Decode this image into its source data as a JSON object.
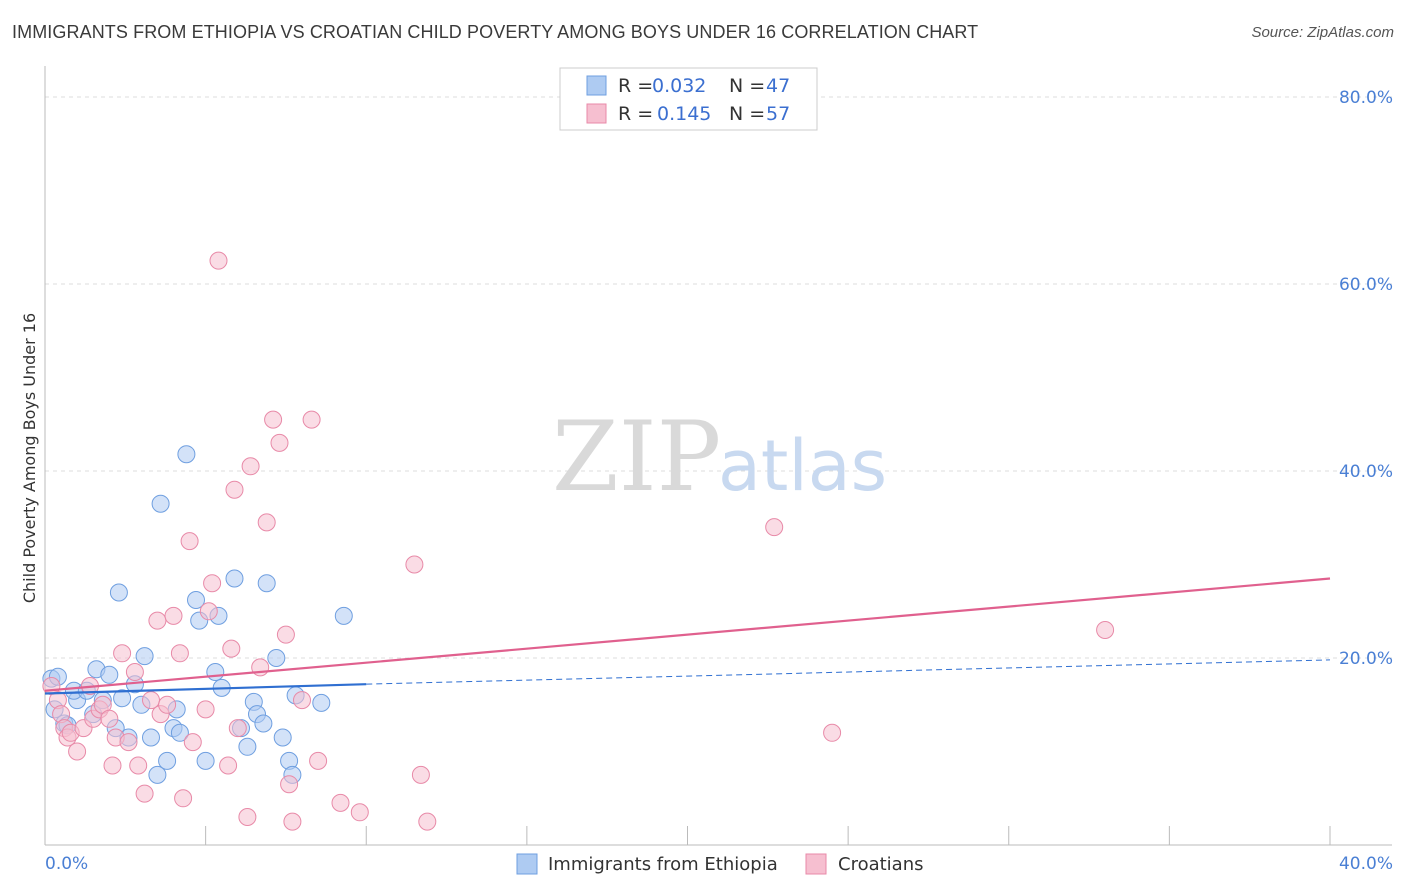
{
  "title": "IMMIGRANTS FROM ETHIOPIA VS CROATIAN CHILD POVERTY AMONG BOYS UNDER 16 CORRELATION CHART",
  "source": "Source: ZipAtlas.com",
  "watermark": {
    "zip": "ZIP",
    "atlas": "atlas"
  },
  "colors": {
    "blue_fill": "#aecbf2",
    "blue_stroke": "#6f9fe0",
    "blue_line": "#2f6fd1",
    "pink_fill": "#f6bfd0",
    "pink_stroke": "#e88aa8",
    "pink_line": "#e0608e",
    "grid": "#dddddd",
    "tick_text": "#4a7fd4"
  },
  "legend": {
    "rows": [
      {
        "r_label": "R =",
        "r_value": "0.032",
        "n_label": "N =",
        "n_value": "47"
      },
      {
        "r_label": "R =",
        "r_value": "0.145",
        "n_label": "N =",
        "n_value": "57"
      }
    ]
  },
  "chart_data": {
    "type": "scatter",
    "title": "IMMIGRANTS FROM ETHIOPIA VS CROATIAN CHILD POVERTY AMONG BOYS UNDER 16 CORRELATION CHART",
    "xlabel": "",
    "ylabel": "Child Poverty Among Boys Under 16",
    "xlim": [
      0,
      40
    ],
    "ylim": [
      0,
      80
    ],
    "x_tick_labels": [
      "0.0%",
      "40.0%"
    ],
    "y_ticks": [
      20,
      40,
      60,
      80
    ],
    "y_tick_labels": [
      "20.0%",
      "40.0%",
      "60.0%",
      "80.0%"
    ],
    "grid": true,
    "series": [
      {
        "name": "Immigrants from Ethiopia",
        "color": "blue",
        "points": [
          [
            0.2,
            17.8
          ],
          [
            0.4,
            18.0
          ],
          [
            0.3,
            14.5
          ],
          [
            0.6,
            13.0
          ],
          [
            0.7,
            12.8
          ],
          [
            1.0,
            15.5
          ],
          [
            0.9,
            16.5
          ],
          [
            1.3,
            16.5
          ],
          [
            1.6,
            18.8
          ],
          [
            1.8,
            15.5
          ],
          [
            2.0,
            18.2
          ],
          [
            2.2,
            12.5
          ],
          [
            2.4,
            15.7
          ],
          [
            2.6,
            11.5
          ],
          [
            2.8,
            17.2
          ],
          [
            3.0,
            15.0
          ],
          [
            3.1,
            20.2
          ],
          [
            3.3,
            11.5
          ],
          [
            3.5,
            7.5
          ],
          [
            3.8,
            9.0
          ],
          [
            4.0,
            12.5
          ],
          [
            4.1,
            14.5
          ],
          [
            4.2,
            12.0
          ],
          [
            4.4,
            41.8
          ],
          [
            3.6,
            36.5
          ],
          [
            2.3,
            27.0
          ],
          [
            4.7,
            26.2
          ],
          [
            4.8,
            24.0
          ],
          [
            5.0,
            9.0
          ],
          [
            5.3,
            18.5
          ],
          [
            5.4,
            24.5
          ],
          [
            5.5,
            16.8
          ],
          [
            5.9,
            28.5
          ],
          [
            6.1,
            12.5
          ],
          [
            6.3,
            10.5
          ],
          [
            6.5,
            15.3
          ],
          [
            6.6,
            14.0
          ],
          [
            6.8,
            13.0
          ],
          [
            6.9,
            28.0
          ],
          [
            7.2,
            20.0
          ],
          [
            7.4,
            11.5
          ],
          [
            7.6,
            9.0
          ],
          [
            7.7,
            7.5
          ],
          [
            7.8,
            16.0
          ],
          [
            8.6,
            15.2
          ],
          [
            9.3,
            24.5
          ],
          [
            1.5,
            14.0
          ]
        ]
      },
      {
        "name": "Croatians",
        "color": "pink",
        "points": [
          [
            0.2,
            17.0
          ],
          [
            0.4,
            15.5
          ],
          [
            0.5,
            14.0
          ],
          [
            0.6,
            12.5
          ],
          [
            0.7,
            11.5
          ],
          [
            0.8,
            12.0
          ],
          [
            1.0,
            10.0
          ],
          [
            1.2,
            12.5
          ],
          [
            1.4,
            17.0
          ],
          [
            1.5,
            13.5
          ],
          [
            1.7,
            14.5
          ],
          [
            1.8,
            15.0
          ],
          [
            2.0,
            13.5
          ],
          [
            2.1,
            8.5
          ],
          [
            2.2,
            11.5
          ],
          [
            2.4,
            20.5
          ],
          [
            2.6,
            11.0
          ],
          [
            2.8,
            18.5
          ],
          [
            2.9,
            8.5
          ],
          [
            3.1,
            5.5
          ],
          [
            3.3,
            15.5
          ],
          [
            3.5,
            24.0
          ],
          [
            3.6,
            14.0
          ],
          [
            3.8,
            15.0
          ],
          [
            4.0,
            24.5
          ],
          [
            4.2,
            20.5
          ],
          [
            4.3,
            5.0
          ],
          [
            4.5,
            32.5
          ],
          [
            4.6,
            11.0
          ],
          [
            5.0,
            14.5
          ],
          [
            5.1,
            25.0
          ],
          [
            5.2,
            28.0
          ],
          [
            5.4,
            62.5
          ],
          [
            5.7,
            8.5
          ],
          [
            5.8,
            21.0
          ],
          [
            5.9,
            38.0
          ],
          [
            6.0,
            12.5
          ],
          [
            6.3,
            3.0
          ],
          [
            6.4,
            40.5
          ],
          [
            6.7,
            19.0
          ],
          [
            6.9,
            34.5
          ],
          [
            7.1,
            45.5
          ],
          [
            7.3,
            43.0
          ],
          [
            7.5,
            22.5
          ],
          [
            7.6,
            6.5
          ],
          [
            7.7,
            2.5
          ],
          [
            8.0,
            15.5
          ],
          [
            8.3,
            45.5
          ],
          [
            8.5,
            9.0
          ],
          [
            9.2,
            4.5
          ],
          [
            9.8,
            3.5
          ],
          [
            11.5,
            30.0
          ],
          [
            11.7,
            7.5
          ],
          [
            11.9,
            2.5
          ],
          [
            22.7,
            34.0
          ],
          [
            24.5,
            12.0
          ],
          [
            33.0,
            23.0
          ]
        ]
      }
    ],
    "trend_lines": [
      {
        "series": "Immigrants from Ethiopia",
        "solid_from": [
          0,
          16.2
        ],
        "solid_to": [
          10,
          17.2
        ],
        "dashed_to": [
          40,
          19.8
        ]
      },
      {
        "series": "Croatians",
        "solid_from": [
          0,
          16.5
        ],
        "solid_to": [
          40,
          28.5
        ]
      }
    ],
    "legend": [
      "Immigrants from Ethiopia",
      "Croatians"
    ]
  }
}
